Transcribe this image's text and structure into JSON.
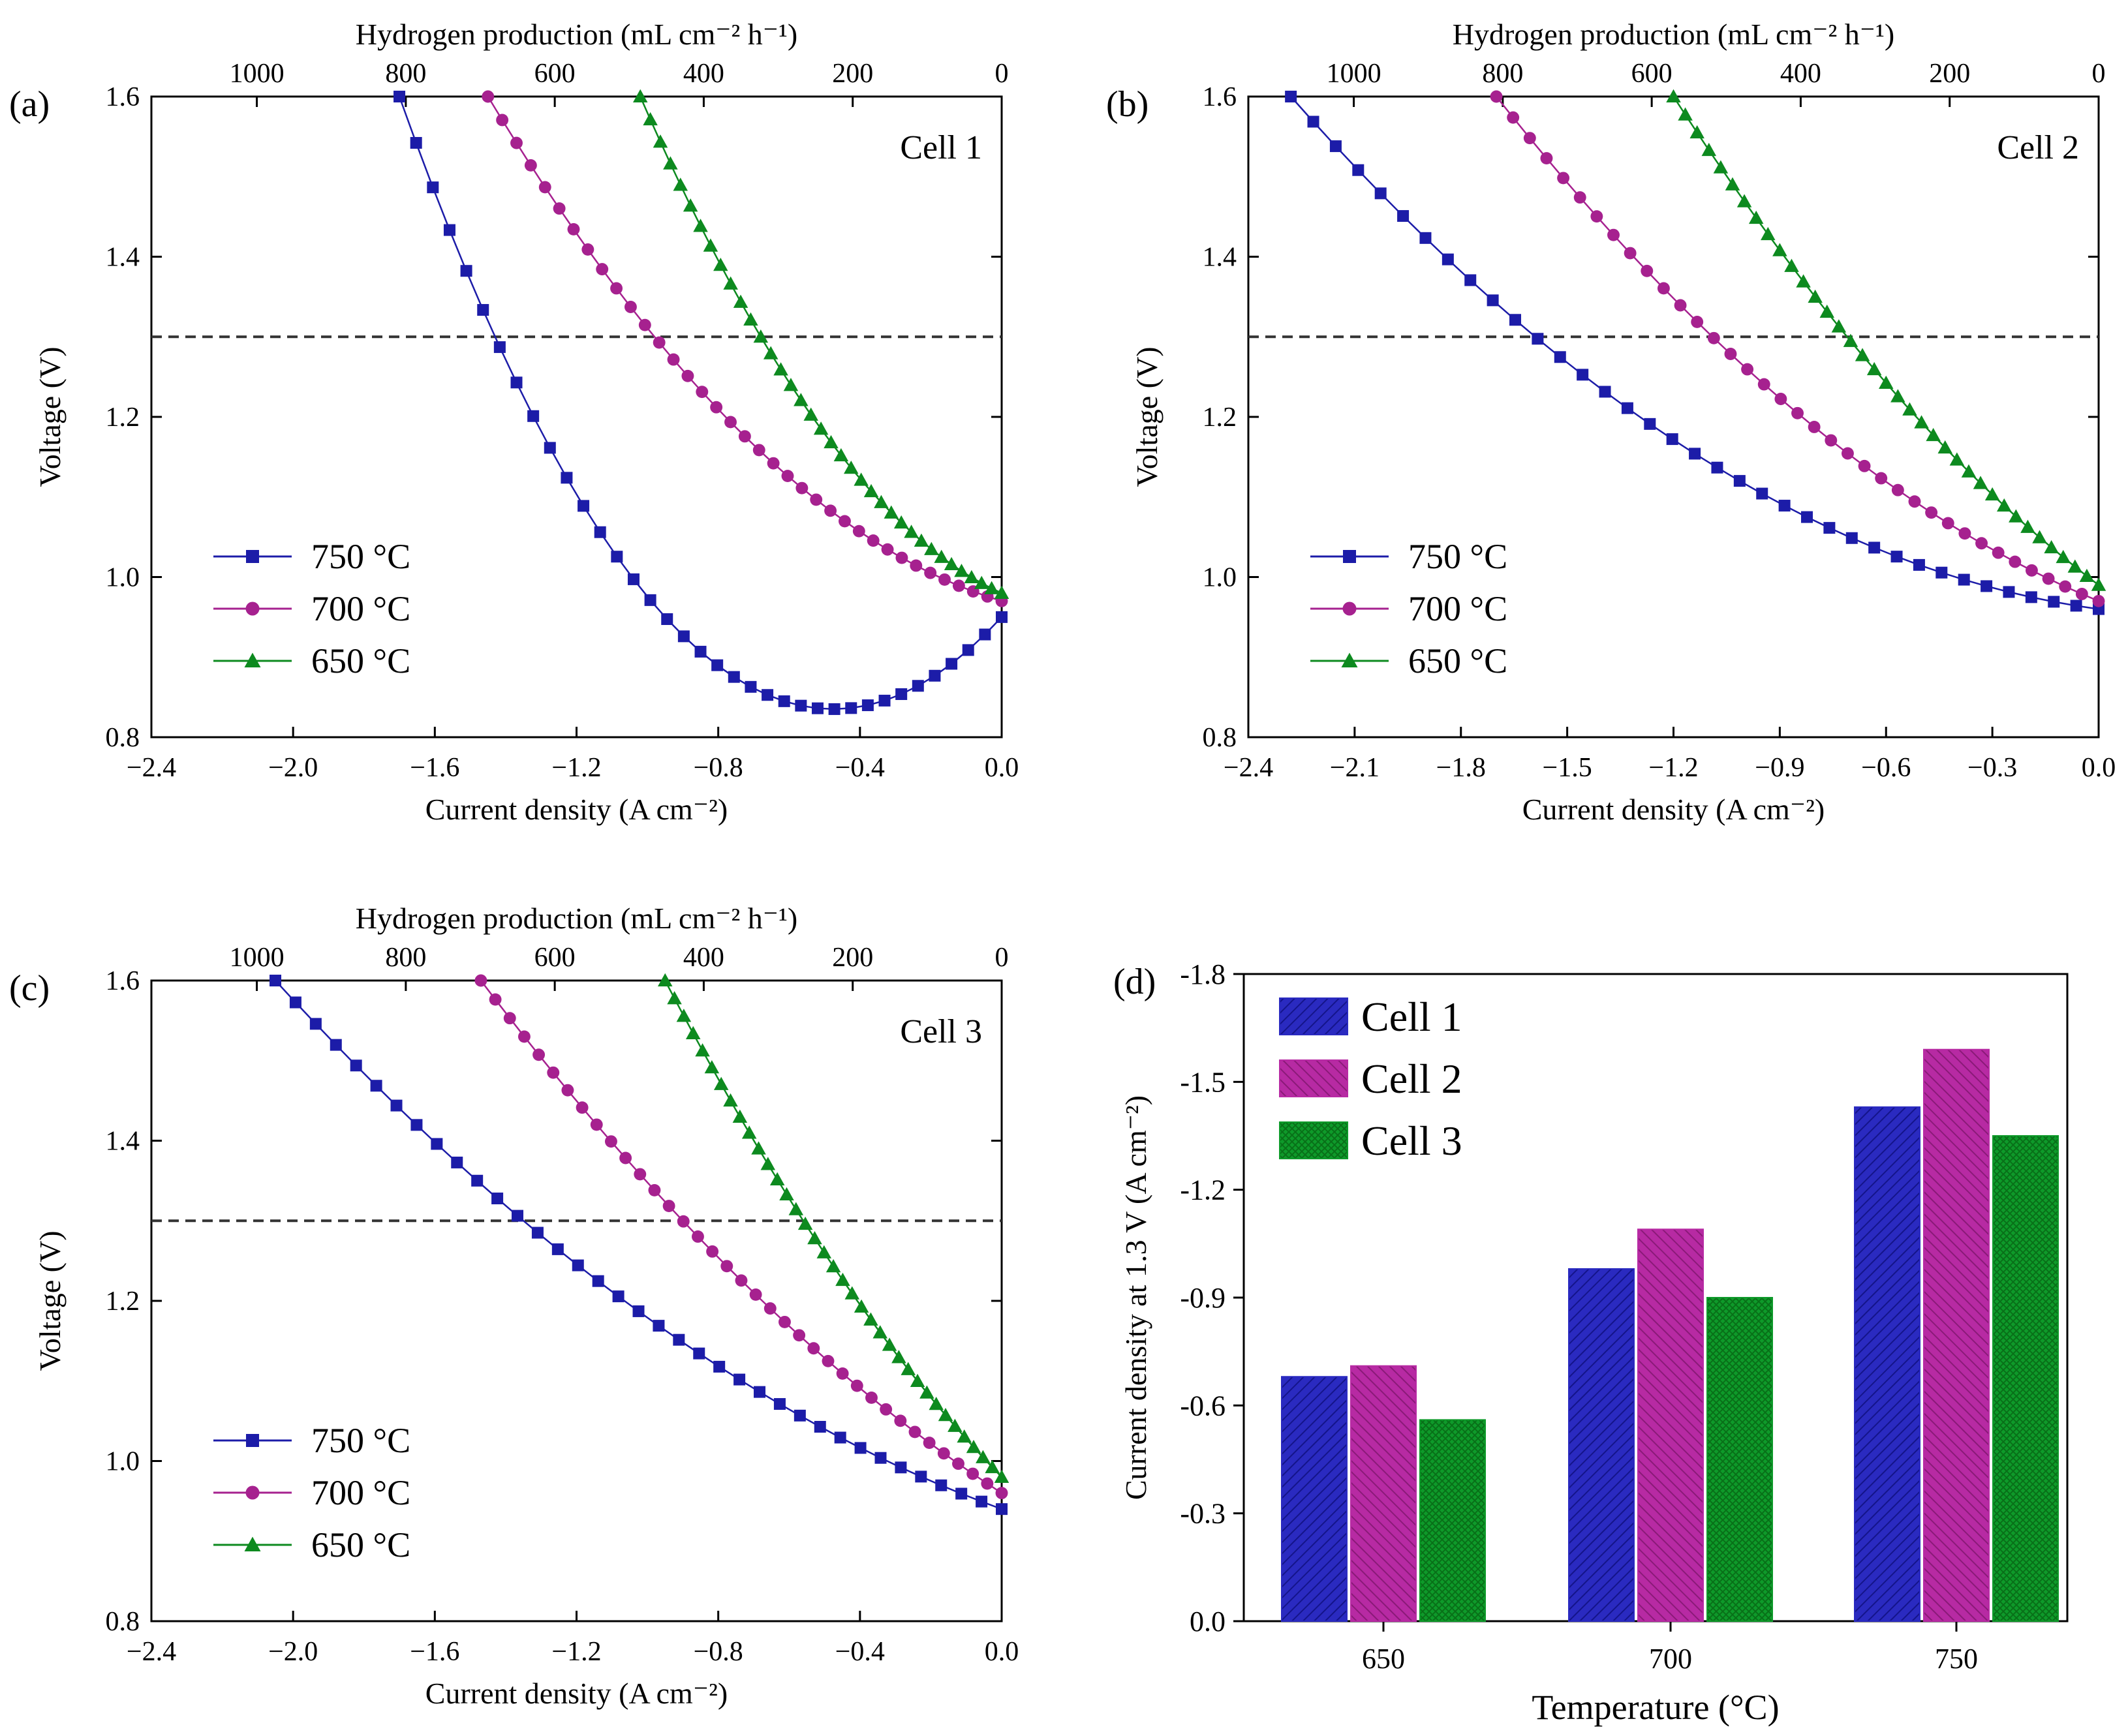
{
  "colors": {
    "series_750": "#1c1ca8",
    "series_700": "#a6218f",
    "series_650": "#0d8a1f",
    "cell1_bar": "#2a2ac0",
    "cell2_bar": "#b72aa3",
    "cell3_bar": "#0e9a2a",
    "dashed": "#333333"
  },
  "chart_data": [
    {
      "id": "a",
      "type": "line",
      "panel_label": "(a)",
      "cell_label": "Cell 1",
      "xlabel": "Current density (A cm⁻²)",
      "ylabel": "Voltage (V)",
      "top_xlabel": "Hydrogen production (mL cm⁻² h⁻¹)",
      "xlim": [
        -2.4,
        0.0
      ],
      "ylim": [
        0.8,
        1.6
      ],
      "xticks": [
        -2.4,
        -2.0,
        -1.6,
        -1.2,
        -0.8,
        -0.4,
        0.0
      ],
      "xtick_labels": [
        "−2.4",
        "−2.0",
        "−1.6",
        "−1.2",
        "−0.8",
        "−0.4",
        "0.0"
      ],
      "yticks": [
        0.8,
        1.0,
        1.2,
        1.4,
        1.6
      ],
      "ytick_labels": [
        "0.8",
        "1.0",
        "1.2",
        "1.4",
        "1.6"
      ],
      "top_ticks": [
        1000,
        800,
        600,
        400,
        200,
        0
      ],
      "top_tick_labels": [
        "1000",
        "800",
        "600",
        "400",
        "200",
        "0"
      ],
      "reference_line_y": 1.3,
      "series": [
        {
          "name": "750 °C",
          "marker": "square",
          "color_key": "series_750",
          "v0": 0.95,
          "j_at_1_6": -1.7,
          "j_at_1_3": -1.43
        },
        {
          "name": "700 °C",
          "marker": "circle",
          "color_key": "series_700",
          "v0": 0.97,
          "j_at_1_6": -1.45,
          "j_at_1_3": -0.98
        },
        {
          "name": "650 °C",
          "marker": "triangle",
          "color_key": "series_650",
          "v0": 0.98,
          "j_at_1_6": -1.02,
          "j_at_1_3": -0.68
        }
      ]
    },
    {
      "id": "b",
      "type": "line",
      "panel_label": "(b)",
      "cell_label": "Cell 2",
      "xlabel": "Current density (A cm⁻²)",
      "ylabel": "Voltage (V)",
      "top_xlabel": "Hydrogen production (mL cm⁻² h⁻¹)",
      "xlim": [
        -2.4,
        0.0
      ],
      "ylim": [
        0.8,
        1.6
      ],
      "xticks": [
        -2.4,
        -2.1,
        -1.8,
        -1.5,
        -1.2,
        -0.9,
        -0.6,
        -0.3,
        0.0
      ],
      "xtick_labels": [
        "−2.4",
        "−2.1",
        "−1.8",
        "−1.5",
        "−1.2",
        "−0.9",
        "−0.6",
        "−0.3",
        "0.0"
      ],
      "yticks": [
        0.8,
        1.0,
        1.2,
        1.4,
        1.6
      ],
      "ytick_labels": [
        "0.8",
        "1.0",
        "1.2",
        "1.4",
        "1.6"
      ],
      "top_ticks": [
        1000,
        800,
        600,
        400,
        200,
        0
      ],
      "top_tick_labels": [
        "1000",
        "800",
        "600",
        "400",
        "200",
        "0"
      ],
      "reference_line_y": 1.3,
      "series": [
        {
          "name": "750 °C",
          "marker": "square",
          "color_key": "series_750",
          "v0": 0.96,
          "j_at_1_6": -2.28,
          "j_at_1_3": -1.59
        },
        {
          "name": "700 °C",
          "marker": "circle",
          "color_key": "series_700",
          "v0": 0.97,
          "j_at_1_6": -1.7,
          "j_at_1_3": -1.09
        },
        {
          "name": "650 °C",
          "marker": "triangle",
          "color_key": "series_650",
          "v0": 0.99,
          "j_at_1_6": -1.2,
          "j_at_1_3": -0.71
        }
      ]
    },
    {
      "id": "c",
      "type": "line",
      "panel_label": "(c)",
      "cell_label": "Cell 3",
      "xlabel": "Current density (A cm⁻²)",
      "ylabel": "Voltage (V)",
      "top_xlabel": "Hydrogen production (mL cm⁻² h⁻¹)",
      "xlim": [
        -2.4,
        0.0
      ],
      "ylim": [
        0.8,
        1.6
      ],
      "xticks": [
        -2.4,
        -2.0,
        -1.6,
        -1.2,
        -0.8,
        -0.4,
        0.0
      ],
      "xtick_labels": [
        "−2.4",
        "−2.0",
        "−1.6",
        "−1.2",
        "−0.8",
        "−0.4",
        "0.0"
      ],
      "yticks": [
        0.8,
        1.0,
        1.2,
        1.4,
        1.6
      ],
      "ytick_labels": [
        "0.8",
        "1.0",
        "1.2",
        "1.4",
        "1.6"
      ],
      "top_ticks": [
        1000,
        800,
        600,
        400,
        200,
        0
      ],
      "top_tick_labels": [
        "1000",
        "800",
        "600",
        "400",
        "200",
        "0"
      ],
      "reference_line_y": 1.3,
      "series": [
        {
          "name": "750 °C",
          "marker": "square",
          "color_key": "series_750",
          "v0": 0.94,
          "j_at_1_6": -2.05,
          "j_at_1_3": -1.35
        },
        {
          "name": "700 °C",
          "marker": "circle",
          "color_key": "series_700",
          "v0": 0.96,
          "j_at_1_6": -1.47,
          "j_at_1_3": -0.9
        },
        {
          "name": "650 °C",
          "marker": "triangle",
          "color_key": "series_650",
          "v0": 0.98,
          "j_at_1_6": -0.95,
          "j_at_1_3": -0.56
        }
      ]
    },
    {
      "id": "d",
      "type": "bar",
      "panel_label": "(d)",
      "xlabel": "Temperature (°C)",
      "ylabel": "Current density at 1.3 V (A cm⁻²)",
      "categories": [
        "650",
        "700",
        "750"
      ],
      "ylim": [
        0.0,
        -1.8
      ],
      "yticks": [
        0.0,
        -0.3,
        -0.6,
        -0.9,
        -1.2,
        -1.5,
        -1.8
      ],
      "ytick_labels": [
        "0.0",
        "-0.3",
        "-0.6",
        "-0.9",
        "-1.2",
        "-1.5",
        "-1.8"
      ],
      "series": [
        {
          "name": "Cell 1",
          "color_key": "cell1_bar",
          "values": [
            -0.68,
            -0.98,
            -1.43
          ]
        },
        {
          "name": "Cell 2",
          "color_key": "cell2_bar",
          "values": [
            -0.71,
            -1.09,
            -1.59
          ]
        },
        {
          "name": "Cell 3",
          "color_key": "cell3_bar",
          "values": [
            -0.56,
            -0.9,
            -1.35
          ]
        }
      ]
    }
  ]
}
